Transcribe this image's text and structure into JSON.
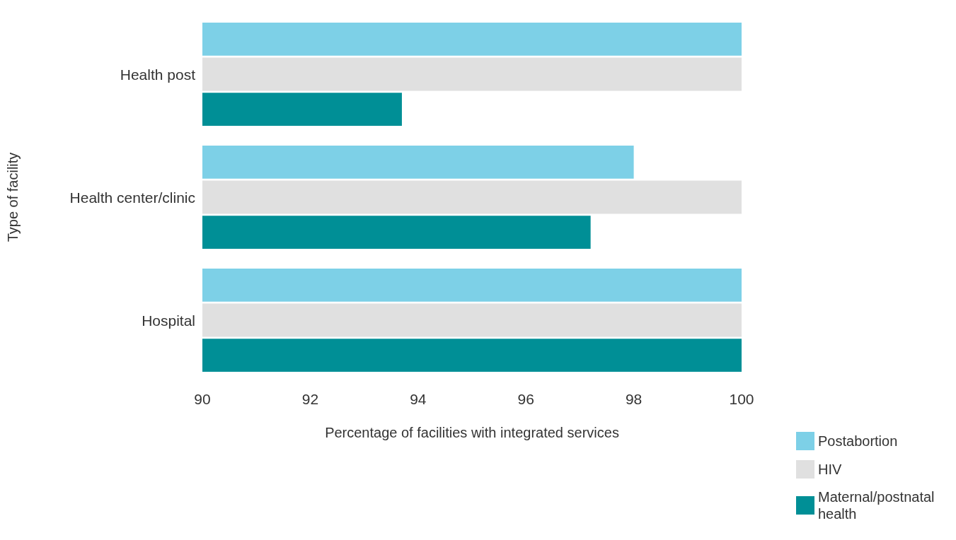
{
  "chart_data": {
    "type": "bar",
    "orientation": "horizontal",
    "xlabel": "Percentage of facilities with integrated services",
    "ylabel": "Type of facility",
    "categories": [
      "Health post",
      "Health center/clinic",
      "Hospital"
    ],
    "series": [
      {
        "name": "Postabortion",
        "color": "#7dd0e7",
        "values": [
          100,
          98.0,
          100
        ]
      },
      {
        "name": "HIV",
        "color": "#e0e0e0",
        "values": [
          100,
          100,
          100
        ]
      },
      {
        "name": "Maternal/postnatal health",
        "color": "#008f96",
        "values": [
          93.7,
          97.2,
          100
        ]
      }
    ],
    "xlim": [
      90,
      100
    ],
    "xticks": [
      90,
      92,
      94,
      96,
      98,
      100
    ],
    "grid": false,
    "legend": "bottom right"
  }
}
